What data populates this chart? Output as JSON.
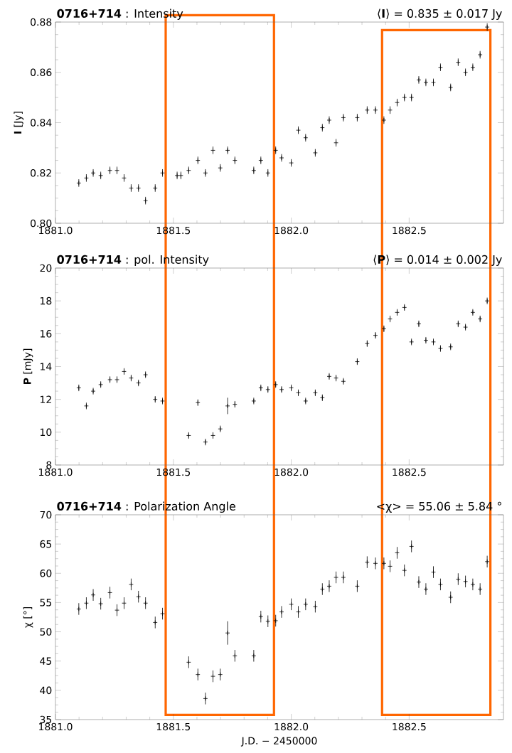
{
  "chart_data": [
    {
      "type": "scatter",
      "title": "**0716+714** : Intensity",
      "subtitle": "⟨**I**⟩ =   0.835 ±  0.017 Jy",
      "ylabel": "**I** [Jy]",
      "marker": "cross",
      "color": "#000000",
      "x": [
        1881.099,
        1881.131,
        1881.16,
        1881.192,
        1881.231,
        1881.261,
        1881.291,
        1881.321,
        1881.352,
        1881.382,
        1881.423,
        1881.454,
        1881.516,
        1881.532,
        1881.565,
        1881.604,
        1881.636,
        1881.668,
        1881.699,
        1881.73,
        1881.761,
        1881.841,
        1881.871,
        1881.901,
        1881.934,
        1881.959,
        1882.0,
        1882.03,
        1882.061,
        1882.102,
        1882.132,
        1882.161,
        1882.19,
        1882.221,
        1882.28,
        1882.322,
        1882.357,
        1882.393,
        1882.419,
        1882.449,
        1882.48,
        1882.51,
        1882.541,
        1882.571,
        1882.603,
        1882.633,
        1882.676,
        1882.708,
        1882.739,
        1882.77,
        1882.801,
        1882.831
      ],
      "values": [
        0.816,
        0.818,
        0.82,
        0.819,
        0.821,
        0.821,
        0.818,
        0.814,
        0.814,
        0.809,
        0.814,
        0.82,
        0.819,
        0.819,
        0.821,
        0.825,
        0.82,
        0.829,
        0.822,
        0.829,
        0.825,
        0.821,
        0.825,
        0.82,
        0.829,
        0.826,
        0.824,
        0.837,
        0.834,
        0.828,
        0.838,
        0.841,
        0.832,
        0.842,
        0.842,
        0.845,
        0.845,
        0.841,
        0.845,
        0.848,
        0.85,
        0.85,
        0.857,
        0.856,
        0.856,
        0.862,
        0.854,
        0.864,
        0.86,
        0.862,
        0.867,
        0.878
      ],
      "errors": [
        0.0015,
        0.0015,
        0.0015,
        0.0015,
        0.0015,
        0.0015,
        0.0015,
        0.0015,
        0.0015,
        0.0015,
        0.0015,
        0.0015,
        0.0015,
        0.0015,
        0.0015,
        0.0015,
        0.0015,
        0.0015,
        0.0015,
        0.0015,
        0.0015,
        0.0015,
        0.0015,
        0.0015,
        0.0015,
        0.0015,
        0.0015,
        0.0015,
        0.0015,
        0.0015,
        0.0015,
        0.0015,
        0.0015,
        0.0015,
        0.0015,
        0.0015,
        0.0015,
        0.0015,
        0.0015,
        0.0015,
        0.0015,
        0.0015,
        0.0015,
        0.0015,
        0.0015,
        0.0015,
        0.0015,
        0.0015,
        0.0015,
        0.0015,
        0.0015,
        0.0015
      ],
      "xlim": [
        1881.0,
        1882.9
      ],
      "ylim": [
        0.8,
        0.88
      ],
      "xticks": [
        {
          "value": 1881.0,
          "label": "1881.0"
        },
        {
          "value": 1881.5,
          "label": "1881.5"
        },
        {
          "value": 1882.0,
          "label": "1882.0"
        },
        {
          "value": 1882.5,
          "label": "1882.5"
        }
      ],
      "yticks": [
        {
          "value": 0.8,
          "label": "0.80"
        },
        0.82,
        0.84,
        0.86,
        {
          "value": 0.88,
          "label": "0.88"
        }
      ]
    },
    {
      "type": "scatter",
      "title": "**0716+714** : pol. Intensity",
      "subtitle": "⟨**P**⟩ =   0.014 ±  0.002 Jy",
      "ylabel": "**P** [mJy]",
      "marker": "cross",
      "color": "#000000",
      "x": [
        1881.099,
        1881.131,
        1881.16,
        1881.192,
        1881.231,
        1881.261,
        1881.291,
        1881.321,
        1881.352,
        1881.382,
        1881.423,
        1881.454,
        1881.565,
        1881.604,
        1881.636,
        1881.668,
        1881.699,
        1881.73,
        1881.761,
        1881.841,
        1881.871,
        1881.901,
        1881.934,
        1881.959,
        1882.0,
        1882.03,
        1882.061,
        1882.102,
        1882.132,
        1882.161,
        1882.19,
        1882.221,
        1882.28,
        1882.322,
        1882.357,
        1882.393,
        1882.419,
        1882.449,
        1882.48,
        1882.51,
        1882.541,
        1882.571,
        1882.603,
        1882.633,
        1882.676,
        1882.708,
        1882.739,
        1882.77,
        1882.801,
        1882.831
      ],
      "values": [
        12.7,
        11.6,
        12.5,
        12.9,
        13.2,
        13.2,
        13.7,
        13.3,
        13.0,
        13.5,
        12.0,
        11.9,
        9.8,
        11.8,
        9.4,
        9.8,
        10.2,
        11.6,
        11.7,
        11.9,
        12.7,
        12.6,
        12.9,
        12.6,
        12.7,
        12.4,
        11.9,
        12.4,
        12.1,
        13.4,
        13.3,
        13.1,
        14.3,
        15.4,
        15.9,
        16.3,
        16.9,
        17.3,
        17.6,
        15.5,
        16.6,
        15.6,
        15.5,
        15.1,
        15.2,
        16.6,
        16.4,
        17.3,
        16.9,
        18.0
      ],
      "errors": [
        0.2,
        0.2,
        0.2,
        0.2,
        0.2,
        0.2,
        0.2,
        0.2,
        0.2,
        0.2,
        0.2,
        0.2,
        0.2,
        0.2,
        0.2,
        0.2,
        0.2,
        0.5,
        0.2,
        0.2,
        0.2,
        0.2,
        0.2,
        0.2,
        0.2,
        0.2,
        0.2,
        0.2,
        0.2,
        0.2,
        0.2,
        0.2,
        0.2,
        0.2,
        0.2,
        0.2,
        0.2,
        0.2,
        0.2,
        0.2,
        0.2,
        0.2,
        0.2,
        0.2,
        0.2,
        0.2,
        0.2,
        0.2,
        0.2,
        0.2
      ],
      "xlim": [
        1881.0,
        1882.9
      ],
      "ylim": [
        8,
        20
      ],
      "xticks": [
        {
          "value": 1881.0,
          "label": "1881.0"
        },
        {
          "value": 1881.5,
          "label": "1881.5"
        },
        {
          "value": 1882.0,
          "label": "1882.0"
        },
        {
          "value": 1882.5,
          "label": "1882.5"
        }
      ],
      "yticks": [
        8,
        10,
        12,
        14,
        16,
        18,
        20
      ]
    },
    {
      "type": "scatter",
      "title": "**0716+714** : Polarization Angle",
      "subtitle": "<χ> =   55.06 ±  5.84 °",
      "ylabel": "χ [°]",
      "xlabel": "J.D. − 2450000",
      "marker": "cross",
      "color": "#000000",
      "x": [
        1881.099,
        1881.131,
        1881.16,
        1881.192,
        1881.231,
        1881.261,
        1881.291,
        1881.321,
        1881.352,
        1881.382,
        1881.423,
        1881.454,
        1881.565,
        1881.604,
        1881.636,
        1881.668,
        1881.699,
        1881.73,
        1881.761,
        1881.841,
        1881.871,
        1881.901,
        1881.934,
        1881.959,
        1882.0,
        1882.03,
        1882.061,
        1882.102,
        1882.132,
        1882.161,
        1882.19,
        1882.221,
        1882.28,
        1882.322,
        1882.357,
        1882.393,
        1882.419,
        1882.449,
        1882.48,
        1882.51,
        1882.541,
        1882.571,
        1882.603,
        1882.633,
        1882.676,
        1882.708,
        1882.739,
        1882.77,
        1882.801,
        1882.831
      ],
      "values": [
        53.9,
        54.9,
        56.3,
        54.8,
        56.7,
        53.7,
        54.9,
        58.1,
        56.0,
        54.9,
        51.6,
        53.1,
        44.8,
        42.7,
        38.6,
        42.4,
        42.7,
        49.8,
        45.9,
        45.9,
        52.6,
        51.8,
        51.9,
        53.4,
        54.7,
        53.4,
        54.7,
        54.3,
        57.3,
        57.8,
        59.3,
        59.3,
        57.8,
        61.9,
        61.7,
        61.7,
        61.2,
        63.5,
        60.5,
        64.6,
        58.5,
        57.3,
        60.2,
        58.1,
        55.9,
        59.0,
        58.6,
        58.1,
        57.3,
        62.0
      ],
      "errors": [
        1,
        1,
        1,
        1,
        1,
        1,
        1,
        1,
        1,
        1,
        1,
        1,
        1,
        1,
        1,
        1,
        1,
        2,
        1,
        1,
        1,
        1,
        1,
        1,
        1,
        1,
        1,
        1,
        1,
        1,
        1,
        1,
        1,
        1,
        1,
        1,
        1,
        1,
        1,
        1,
        1,
        1,
        1,
        1,
        1,
        1,
        1,
        1,
        1,
        1
      ],
      "xlim": [
        1881.0,
        1882.9
      ],
      "ylim": [
        35,
        70
      ],
      "xticks": [
        {
          "value": 1881.0,
          "label": "1881.0"
        },
        {
          "value": 1881.5,
          "label": "1881.5"
        },
        {
          "value": 1882.0,
          "label": "1882.0"
        },
        {
          "value": 1882.5,
          "label": "1882.5"
        }
      ],
      "yticks": [
        35,
        40,
        45,
        50,
        55,
        60,
        65,
        70
      ]
    }
  ]
}
